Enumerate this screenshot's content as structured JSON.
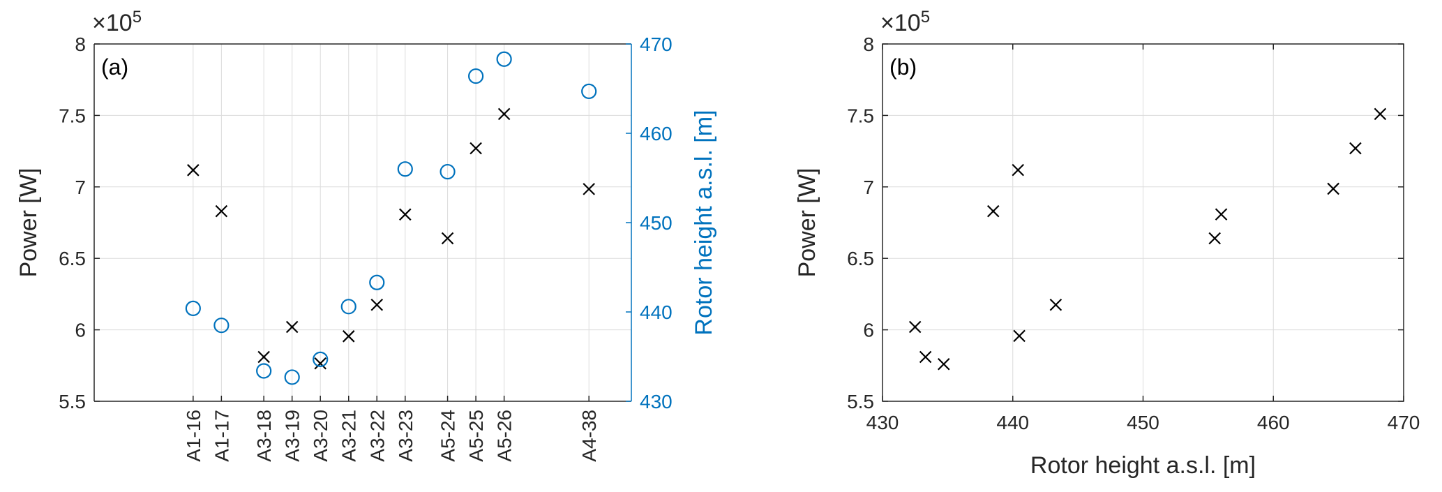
{
  "colors": {
    "axis": "#262626",
    "grid": "#dcdcdc",
    "accent": "#0072bd",
    "marker": "#000000"
  },
  "chart_data": [
    {
      "type": "scatter",
      "panel_label": "(a)",
      "ylabel": "Power [W]",
      "y2label": "Rotor height a.s.l. [m]",
      "y_exponent_label": "10",
      "y_exponent": "5",
      "y_exponent_prefix": "×",
      "ylim": [
        550000,
        800000
      ],
      "yticks": [
        550000,
        600000,
        650000,
        700000,
        750000,
        800000
      ],
      "ytick_labels": [
        "5.5",
        "6",
        "6.5",
        "7",
        "7.5",
        "8"
      ],
      "y2lim": [
        430,
        470
      ],
      "y2ticks": [
        430,
        440,
        450,
        460,
        470
      ],
      "y2tick_labels": [
        "430",
        "440",
        "450",
        "460",
        "470"
      ],
      "xlim": [
        -7,
        31
      ],
      "grid": true,
      "categories": [
        "A1-16",
        "A1-17",
        "A3-18",
        "A3-19",
        "A3-20",
        "A3-21",
        "A3-22",
        "A3-23",
        "A5-24",
        "A5-25",
        "A5-26",
        "A4-38"
      ],
      "x": [
        0,
        2,
        5,
        7,
        9,
        11,
        13,
        15,
        18,
        20,
        22,
        28
      ],
      "series": [
        {
          "marker": "x",
          "color": "#000000",
          "axis": "left",
          "values": [
            711700,
            683000,
            581000,
            602000,
            576500,
            595500,
            617500,
            680700,
            664000,
            727000,
            751000,
            698500
          ]
        },
        {
          "marker": "o",
          "color": "#0072bd",
          "axis": "right",
          "values": [
            440.4,
            438.5,
            433.4,
            432.7,
            434.7,
            440.6,
            443.3,
            456.0,
            455.7,
            466.4,
            468.3,
            464.7
          ]
        }
      ]
    },
    {
      "type": "scatter",
      "panel_label": "(b)",
      "xlabel": "Rotor height a.s.l. [m]",
      "ylabel": "Power [W]",
      "y_exponent_label": "10",
      "y_exponent": "5",
      "y_exponent_prefix": "×",
      "xlim": [
        430,
        470
      ],
      "xticks": [
        430,
        440,
        450,
        460,
        470
      ],
      "xtick_labels": [
        "430",
        "440",
        "450",
        "460",
        "470"
      ],
      "ylim": [
        550000,
        800000
      ],
      "yticks": [
        550000,
        600000,
        650000,
        700000,
        750000,
        800000
      ],
      "ytick_labels": [
        "5.5",
        "6",
        "6.5",
        "7",
        "7.5",
        "8"
      ],
      "grid": true,
      "series": [
        {
          "marker": "x",
          "color": "#000000",
          "x": [
            432.5,
            433.3,
            434.7,
            438.5,
            440.4,
            440.5,
            443.3,
            455.5,
            456.0,
            464.6,
            466.3,
            468.2
          ],
          "y": [
            602000,
            581000,
            576000,
            683000,
            711800,
            595700,
            617500,
            664000,
            680800,
            698700,
            727000,
            751000
          ]
        }
      ]
    }
  ]
}
